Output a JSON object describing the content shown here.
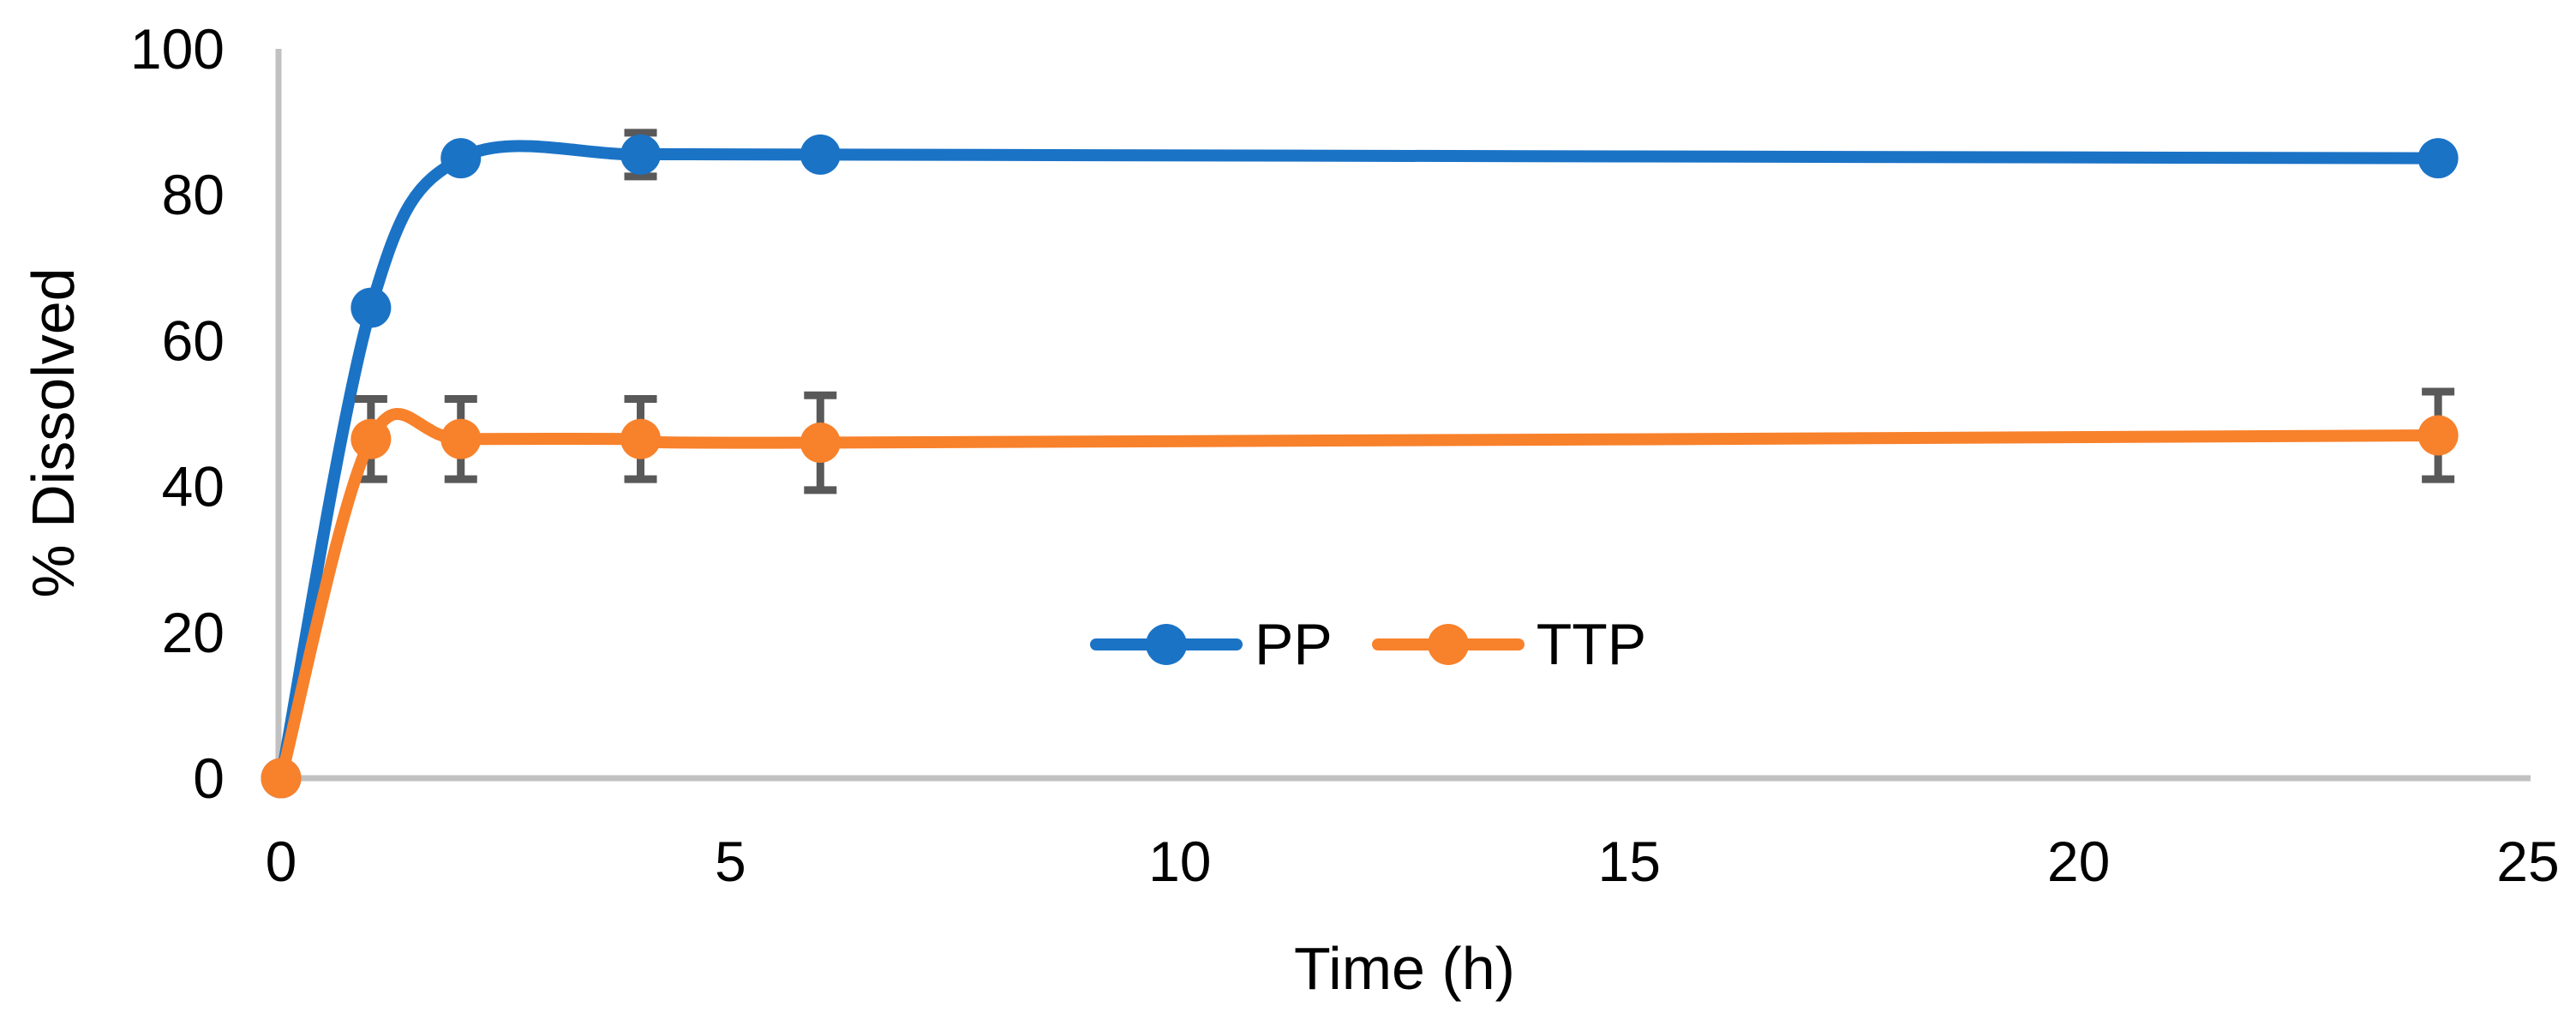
{
  "chart_data": {
    "type": "line",
    "title": "",
    "xlabel": "Time (h)",
    "ylabel": "% Dissolved",
    "xlim": [
      0,
      25
    ],
    "ylim": [
      0,
      100
    ],
    "x_ticks": [
      0,
      5,
      10,
      15,
      20,
      25
    ],
    "y_ticks": [
      0,
      20,
      40,
      60,
      80,
      100
    ],
    "grid": false,
    "smooth_lines": true,
    "legend_position": "inside-bottom-center",
    "x": [
      0,
      1,
      2,
      4,
      6,
      24
    ],
    "series": [
      {
        "name": "PP",
        "color": "#1B73C6",
        "values": [
          0,
          64.5,
          85,
          85.5,
          85.5,
          85
        ],
        "error_bars": [
          0,
          0,
          0,
          3,
          0,
          0
        ]
      },
      {
        "name": "TTP",
        "color": "#F8812B",
        "values": [
          0,
          46.5,
          46.5,
          46.5,
          46,
          47
        ],
        "error_bars": [
          0,
          5.5,
          5.5,
          5.5,
          6.5,
          6
        ]
      }
    ],
    "colors": {
      "axis_line": "#C1C1C1",
      "error_bar": "#595959",
      "text": "#000000"
    }
  }
}
